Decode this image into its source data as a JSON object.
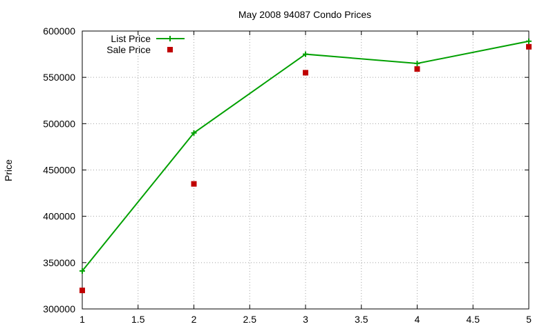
{
  "chart_data": {
    "type": "line",
    "title": "May 2008 94087 Condo Prices",
    "xlabel": "",
    "ylabel": "Price",
    "xlim": [
      1,
      5
    ],
    "ylim": [
      300000,
      600000
    ],
    "x_ticks": [
      "1",
      "1.5",
      "2",
      "2.5",
      "3",
      "3.5",
      "4",
      "4.5",
      "5"
    ],
    "y_ticks": [
      "300000",
      "350000",
      "400000",
      "450000",
      "500000",
      "550000",
      "600000"
    ],
    "grid": true,
    "legend_position": "top-left",
    "series": [
      {
        "name": "List Price",
        "style": "line-with-plus-markers",
        "color": "#00a000",
        "x": [
          1,
          2,
          3,
          4,
          5
        ],
        "y": [
          341000,
          490000,
          575000,
          565000,
          589000
        ]
      },
      {
        "name": "Sale Price",
        "style": "square-markers",
        "color": "#c00000",
        "x": [
          1,
          2,
          3,
          4,
          5
        ],
        "y": [
          320000,
          435000,
          555000,
          559000,
          583000
        ]
      }
    ]
  }
}
